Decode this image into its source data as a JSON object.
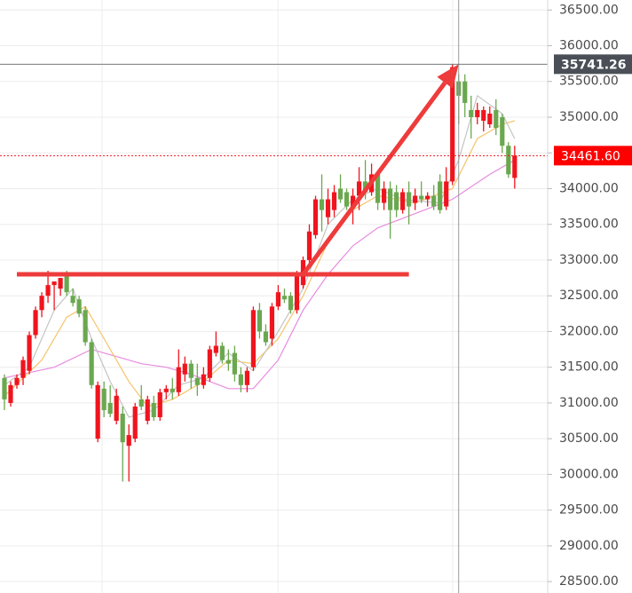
{
  "chart_data": {
    "type": "candlestick",
    "up_color": "#f0141e",
    "down_color": "#6aa84f",
    "open": [
      31350,
      31000,
      31250,
      31350,
      31450,
      31950,
      32300,
      32500,
      32650,
      32600,
      32800,
      32500,
      32450,
      32300,
      31850,
      30500,
      31200,
      31000,
      30750,
      30850,
      30400,
      30500,
      31050,
      30750,
      31000,
      30800,
      31150,
      31200,
      31150,
      31400,
      31550,
      31350,
      31250,
      31350,
      31700,
      31800,
      31600,
      31700,
      31400,
      31250,
      31500,
      32300,
      32000,
      31900,
      32350,
      32500,
      32500,
      32300,
      32650,
      33000,
      33350,
      33850,
      33600,
      33700,
      34000,
      33950,
      33750,
      33900,
      34100,
      33950,
      34200,
      33800,
      34000,
      33950,
      33700,
      33950,
      33800,
      33900,
      33850,
      33900,
      34100,
      33750,
      34100,
      35500,
      35500,
      35100,
      35000,
      34950,
      34900,
      35100,
      35000,
      34600,
      34150
    ],
    "high": [
      31400,
      31300,
      31400,
      31650,
      32000,
      32350,
      32550,
      32850,
      32700,
      32750,
      32850,
      32600,
      32500,
      32350,
      31900,
      31300,
      31300,
      31250,
      31200,
      30950,
      30700,
      31000,
      31250,
      31100,
      31100,
      31200,
      31250,
      31350,
      31750,
      31650,
      31600,
      31550,
      31500,
      31800,
      32000,
      31850,
      31750,
      31800,
      31500,
      31500,
      32350,
      32400,
      32100,
      32400,
      32650,
      32600,
      32550,
      32850,
      33050,
      33500,
      33900,
      34200,
      34000,
      34050,
      34200,
      34000,
      34000,
      34300,
      34400,
      34350,
      34250,
      34100,
      34100,
      34050,
      34000,
      34100,
      34000,
      34100,
      33950,
      34050,
      34200,
      34300,
      35741.26,
      35600,
      35600,
      35300,
      35200,
      35150,
      35150,
      35250,
      35050,
      34650,
      34600
    ],
    "low": [
      30900,
      30950,
      31200,
      31250,
      31400,
      31900,
      32200,
      32400,
      32300,
      32500,
      32500,
      32350,
      32200,
      31800,
      31200,
      30450,
      30800,
      30800,
      30700,
      29900,
      29900,
      30450,
      30900,
      30700,
      30750,
      30750,
      31050,
      31050,
      31100,
      31300,
      31200,
      31100,
      31200,
      31300,
      31650,
      31550,
      31450,
      31300,
      31150,
      31150,
      31450,
      31900,
      31800,
      31800,
      32300,
      32400,
      32250,
      32250,
      32600,
      32950,
      33300,
      33400,
      33500,
      33600,
      33800,
      33700,
      33500,
      33700,
      33850,
      33900,
      33700,
      33700,
      33300,
      33600,
      33650,
      33500,
      33700,
      33800,
      33750,
      33700,
      33650,
      33700,
      34050,
      34900,
      35000,
      34700,
      34900,
      34800,
      34850,
      34750,
      34500,
      34150,
      34000
    ],
    "close": [
      31050,
      31250,
      31350,
      31600,
      31950,
      32300,
      32500,
      32650,
      32700,
      32750,
      32550,
      32400,
      32250,
      31850,
      31250,
      31250,
      30900,
      30850,
      31100,
      30450,
      30550,
      30950,
      30950,
      31050,
      30800,
      31150,
      31200,
      31150,
      31500,
      31550,
      31350,
      31250,
      31400,
      31750,
      31800,
      31600,
      31550,
      31400,
      31250,
      31450,
      32300,
      32000,
      31850,
      32350,
      32550,
      32450,
      32300,
      32800,
      33000,
      33400,
      33850,
      33700,
      33850,
      33950,
      33850,
      33750,
      33900,
      34100,
      33950,
      34200,
      33800,
      34000,
      33700,
      33700,
      33950,
      33750,
      33900,
      33850,
      33900,
      33750,
      33700,
      34100,
      35700,
      35300,
      35200,
      35000,
      35100,
      35100,
      35050,
      34850,
      34600,
      34200,
      34461.6
    ],
    "overlays": [
      {
        "color": "#e88be0",
        "x": [
          0,
          8,
          14,
          18,
          22,
          26,
          30,
          36,
          40,
          44,
          48,
          52,
          56,
          60,
          66,
          72,
          78,
          82
        ],
        "values": [
          31350,
          31500,
          31750,
          31650,
          31550,
          31500,
          31400,
          31200,
          31200,
          31600,
          32300,
          32800,
          33200,
          33450,
          33650,
          33850,
          34200,
          34400
        ]
      },
      {
        "color": "#f5c46a",
        "x": [
          0,
          6,
          10,
          13,
          16,
          20,
          23,
          27,
          32,
          36,
          40,
          44,
          48,
          52,
          56,
          60,
          66,
          72,
          76,
          80,
          82
        ],
        "values": [
          31100,
          31600,
          32200,
          32350,
          31900,
          31300,
          30950,
          31050,
          31300,
          31600,
          31550,
          31900,
          32500,
          33250,
          33700,
          33900,
          33800,
          34000,
          34700,
          34900,
          34950
        ]
      },
      {
        "color": "#c4c4c4",
        "x": [
          0,
          4,
          8,
          11,
          14,
          17,
          20,
          24,
          28,
          32,
          36,
          40,
          44,
          48,
          52,
          56,
          60,
          64,
          70,
          73,
          76,
          80,
          82
        ],
        "values": [
          31250,
          31500,
          32300,
          32600,
          31900,
          31300,
          30800,
          30900,
          31250,
          31350,
          31700,
          31450,
          32000,
          32600,
          33500,
          33850,
          34000,
          33850,
          33800,
          34400,
          35300,
          35050,
          34700
        ]
      }
    ],
    "level_line": {
      "value": 32800,
      "x": [
        2,
        65
      ],
      "color": "#ee3b3b"
    },
    "arrow": {
      "x": [
        48,
        73
      ],
      "values": [
        32800,
        35741.26
      ],
      "color": "#ee3b3b"
    },
    "crosshair": {
      "value": 35741.26,
      "label": "35741.26"
    },
    "last_price": {
      "value": 34461.6,
      "label": "34461.60"
    },
    "ylim": [
      28340,
      36640
    ],
    "yticks": [
      {
        "value": 28500,
        "label": "28500.00"
      },
      {
        "value": 29000,
        "label": "29000.00"
      },
      {
        "value": 29500,
        "label": "29500.00"
      },
      {
        "value": 30000,
        "label": "30000.00"
      },
      {
        "value": 30500,
        "label": "30500.00"
      },
      {
        "value": 31000,
        "label": "31000.00"
      },
      {
        "value": 31500,
        "label": "31500.00"
      },
      {
        "value": 32000,
        "label": "32000.00"
      },
      {
        "value": 32500,
        "label": "32500.00"
      },
      {
        "value": 33000,
        "label": "33000.00"
      },
      {
        "value": 33500,
        "label": "33500.00"
      },
      {
        "value": 34000,
        "label": "34000.00"
      },
      {
        "value": 34500,
        "label": "34500.00"
      },
      {
        "value": 35000,
        "label": "35000.00"
      },
      {
        "value": 35500,
        "label": "35500.00"
      },
      {
        "value": 36000,
        "label": "36000.00"
      },
      {
        "value": 36500,
        "label": "36500.00"
      }
    ],
    "grid": true
  }
}
